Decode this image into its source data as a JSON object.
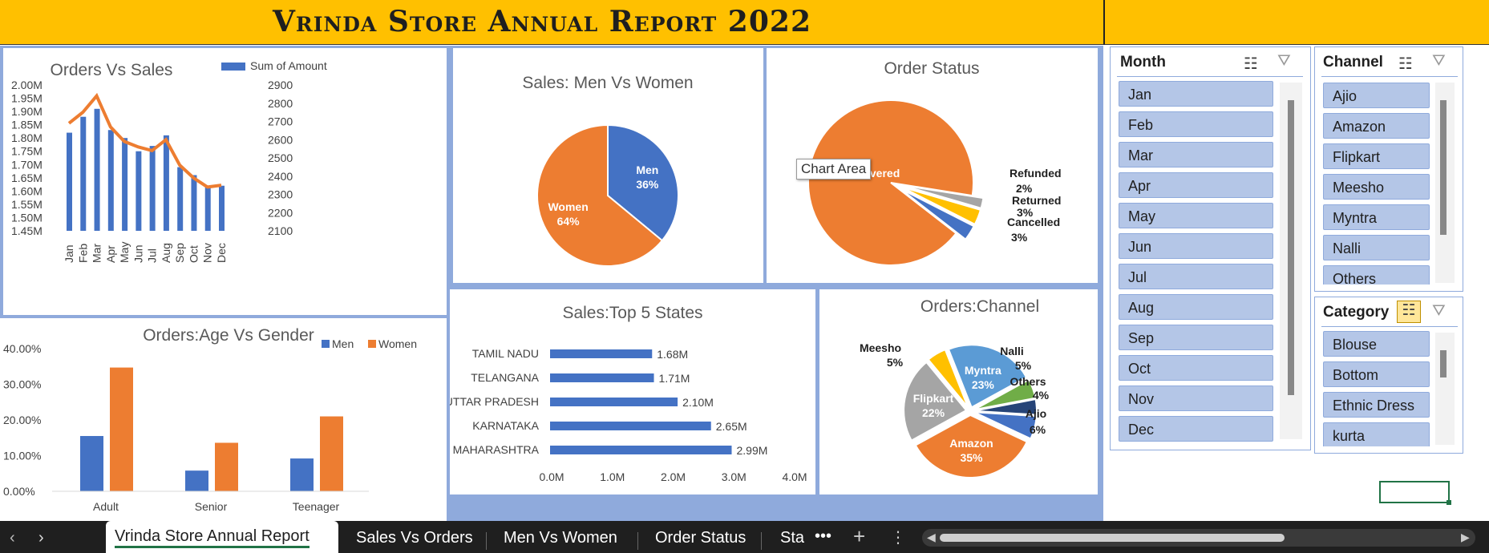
{
  "title": "Vrinda Store Annual Report 2022",
  "colors": {
    "men": "#4472c4",
    "women": "#ed7d31",
    "header": "#ffc000",
    "slicer_item": "#b4c6e7"
  },
  "tooltip": "Chart Area",
  "chart_data": [
    {
      "type": "bar",
      "title": "Orders Vs Sales",
      "categories": [
        "Jan",
        "Feb",
        "Mar",
        "Apr",
        "May",
        "Jun",
        "Jul",
        "Aug",
        "Sep",
        "Oct",
        "Nov",
        "Dec"
      ],
      "series": [
        {
          "name": "Sum of Amount",
          "values": [
            1.82,
            1.88,
            1.91,
            1.83,
            1.8,
            1.75,
            1.77,
            1.81,
            1.69,
            1.66,
            1.62,
            1.62
          ]
        }
      ],
      "line_values": [
        2690,
        2750,
        2840,
        2670,
        2590,
        2560,
        2540,
        2600,
        2460,
        2390,
        2340,
        2350
      ],
      "y_ticks": [
        "2.00M",
        "1.95M",
        "1.90M",
        "1.85M",
        "1.80M",
        "1.75M",
        "1.70M",
        "1.65M",
        "1.60M",
        "1.55M",
        "1.50M",
        "1.45M"
      ],
      "y2_ticks": [
        "2900",
        "2800",
        "2700",
        "2600",
        "2500",
        "2400",
        "2300",
        "2200",
        "2100"
      ],
      "ylim": [
        1.45,
        2.0
      ],
      "y2lim": [
        2100,
        2900
      ]
    },
    {
      "type": "pie",
      "title": "Sales: Men Vs Women",
      "categories": [
        "Men",
        "Women"
      ],
      "values": [
        36,
        64
      ],
      "labels": [
        "36%",
        "64%"
      ]
    },
    {
      "type": "pie",
      "title": "Order Status",
      "categories": [
        "Delivered",
        "Refunded",
        "Returned",
        "Cancelled"
      ],
      "values": [
        92,
        2,
        3,
        3
      ],
      "labels": [
        "",
        "2%",
        "3%",
        "3%"
      ],
      "visible_delivered_text": "ivered"
    },
    {
      "type": "bar",
      "title": "Orders:Age Vs Gender",
      "categories": [
        "Adult",
        "Senior",
        "Teenager"
      ],
      "series": [
        {
          "name": "Men",
          "values": [
            15.5,
            5.8,
            9.2
          ]
        },
        {
          "name": "Women",
          "values": [
            34.7,
            13.6,
            21.0
          ]
        }
      ],
      "y_ticks": [
        "40.00%",
        "30.00%",
        "20.00%",
        "10.00%",
        "0.00%"
      ],
      "ylim": [
        0,
        40
      ]
    },
    {
      "type": "bar",
      "title": "Sales:Top 5 States",
      "categories": [
        "TAMIL NADU",
        "TELANGANA",
        "UTTAR PRADESH",
        "KARNATAKA",
        "MAHARASHTRA"
      ],
      "values": [
        1.68,
        1.71,
        2.1,
        2.65,
        2.99
      ],
      "labels": [
        "1.68M",
        "1.71M",
        "2.10M",
        "2.65M",
        "2.99M"
      ],
      "x_ticks": [
        "0.0M",
        "1.0M",
        "2.0M",
        "3.0M",
        "4.0M"
      ],
      "xlim": [
        0,
        4
      ]
    },
    {
      "type": "pie",
      "title": "Orders:Channel",
      "categories": [
        "Myntra",
        "Nalli",
        "Others",
        "Ajio",
        "Amazon",
        "Flipkart",
        "Meesho"
      ],
      "values": [
        23,
        5,
        4,
        6,
        35,
        22,
        5
      ],
      "labels": [
        "23%",
        "5%",
        "4%",
        "6%",
        "35%",
        "22%",
        "5%"
      ]
    }
  ],
  "slicers": {
    "month": {
      "title": "Month",
      "items": [
        "Jan",
        "Feb",
        "Mar",
        "Apr",
        "May",
        "Jun",
        "Jul",
        "Aug",
        "Sep",
        "Oct",
        "Nov",
        "Dec"
      ]
    },
    "channel": {
      "title": "Channel",
      "items": [
        "Ajio",
        "Amazon",
        "Flipkart",
        "Meesho",
        "Myntra",
        "Nalli",
        "Others"
      ]
    },
    "category": {
      "title": "Category",
      "items": [
        "Blouse",
        "Bottom",
        "Ethnic Dress",
        "kurta"
      ]
    }
  },
  "tabs": [
    "Vrinda Store Annual Report",
    "Sales Vs Orders",
    "Men Vs Women",
    "Order Status",
    "Sta"
  ]
}
